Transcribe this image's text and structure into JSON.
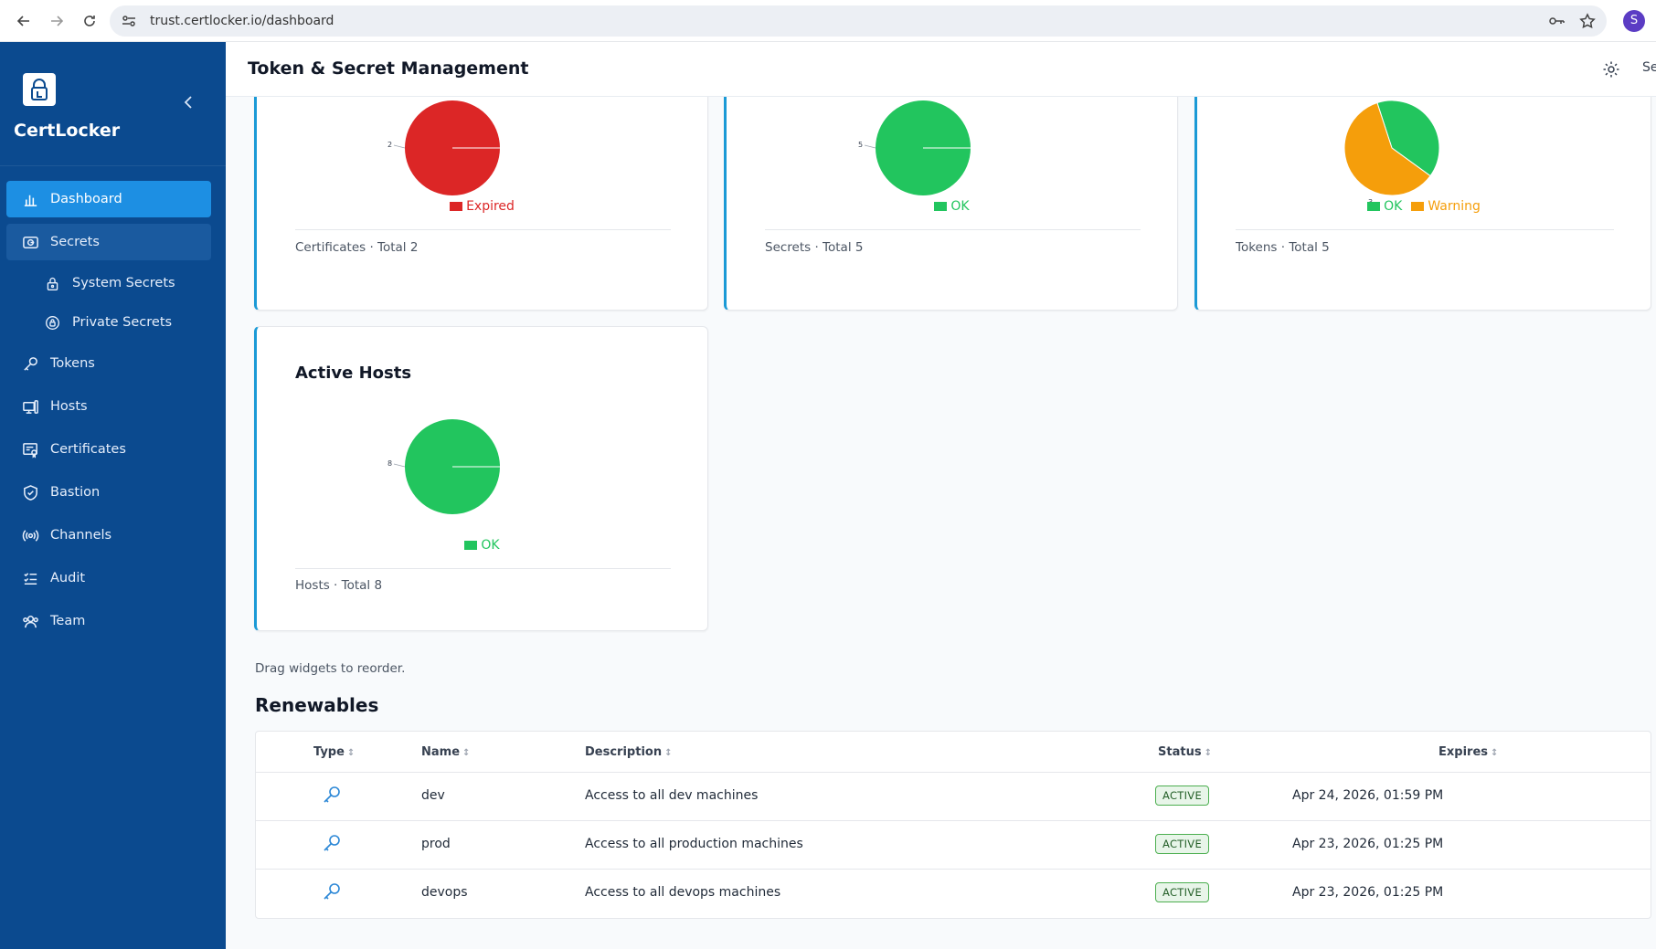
{
  "browser": {
    "url": "trust.certlocker.io/dashboard",
    "profile_initial": "S"
  },
  "sidebar": {
    "brand": "CertLocker",
    "items": [
      {
        "label": "Dashboard",
        "icon": "bar-chart-icon",
        "active": true
      },
      {
        "label": "Secrets",
        "icon": "secrets-icon"
      },
      {
        "label": "System Secrets",
        "icon": "lock-icon",
        "sub": true
      },
      {
        "label": "Private Secrets",
        "icon": "at-lock-icon",
        "sub": true
      },
      {
        "label": "Tokens",
        "icon": "key-icon"
      },
      {
        "label": "Hosts",
        "icon": "hosts-icon"
      },
      {
        "label": "Certificates",
        "icon": "certificate-icon"
      },
      {
        "label": "Bastion",
        "icon": "shield-icon"
      },
      {
        "label": "Channels",
        "icon": "broadcast-icon"
      },
      {
        "label": "Audit",
        "icon": "list-check-icon"
      },
      {
        "label": "Team",
        "icon": "team-icon"
      }
    ]
  },
  "header": {
    "title": "Token & Secret Management",
    "cut_text": "Se"
  },
  "widgets": [
    {
      "title": "",
      "footer": "Certificates · Total 2",
      "slices": [
        {
          "label": "Expired",
          "value": 2,
          "color": "#dc2626"
        }
      ]
    },
    {
      "title": "",
      "footer": "Secrets · Total 5",
      "slices": [
        {
          "label": "OK",
          "value": 5,
          "color": "#22c55e"
        }
      ]
    },
    {
      "title": "",
      "footer": "Tokens · Total 5",
      "slices": [
        {
          "label": "OK",
          "value": 2,
          "color": "#22c55e"
        },
        {
          "label": "Warning",
          "value": 3,
          "color": "#f59e0b"
        }
      ]
    },
    {
      "title": "Active Hosts",
      "footer": "Hosts · Total 8",
      "slices": [
        {
          "label": "OK",
          "value": 8,
          "color": "#22c55e"
        }
      ]
    }
  ],
  "hint": "Drag widgets to reorder.",
  "renewables": {
    "title": "Renewables",
    "columns": [
      "Type",
      "Name",
      "Description",
      "Status",
      "Expires"
    ],
    "sort_glyph": "↕",
    "rows": [
      {
        "name": "dev",
        "description": "Access to all dev machines",
        "status": "ACTIVE",
        "expires": "Apr 24, 2026, 01:59 PM"
      },
      {
        "name": "prod",
        "description": "Access to all production machines",
        "status": "ACTIVE",
        "expires": "Apr 23, 2026, 01:25 PM"
      },
      {
        "name": "devops",
        "description": "Access to all devops machines",
        "status": "ACTIVE",
        "expires": "Apr 23, 2026, 01:25 PM"
      }
    ]
  },
  "chart_data": [
    {
      "type": "pie",
      "categories": [
        "Expired"
      ],
      "values": [
        2
      ],
      "title": ""
    },
    {
      "type": "pie",
      "categories": [
        "OK"
      ],
      "values": [
        5
      ],
      "title": ""
    },
    {
      "type": "pie",
      "categories": [
        "OK",
        "Warning"
      ],
      "values": [
        2,
        3
      ],
      "title": ""
    },
    {
      "type": "pie",
      "categories": [
        "OK"
      ],
      "values": [
        8
      ],
      "title": "Active Hosts"
    }
  ]
}
